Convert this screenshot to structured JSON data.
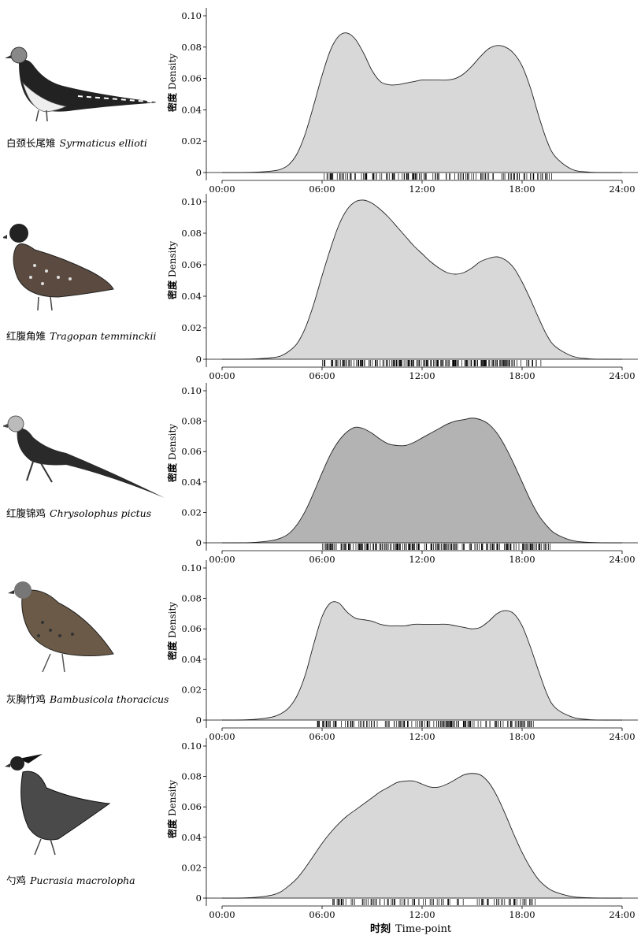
{
  "colors": {
    "fill_light": "#d8d8d8",
    "fill_dark": "#b3b3b3",
    "curve": "#222222",
    "axis": "#000000",
    "rug": "#000000"
  },
  "axis_title_cn": "时刻",
  "axis_title_en": "Time-point",
  "y_label_cn": "密度",
  "y_label_en": "Density",
  "chart_data": [
    {
      "type": "area",
      "species_cn": "白颈长尾雉",
      "species_sci": "Syrmaticus ellioti",
      "fill": "light",
      "xlim": [
        0,
        24
      ],
      "ylim": [
        0,
        0.1
      ],
      "x_ticks": [
        "00:00",
        "06:00",
        "12:00",
        "18:00",
        "24:00"
      ],
      "y_ticks": [
        "0",
        "0.02",
        "0.04",
        "0.06",
        "0.08",
        "0.10"
      ],
      "x": [
        0,
        1,
        2,
        3,
        3.5,
        4,
        4.5,
        5,
        5.5,
        6,
        6.5,
        7,
        7.5,
        8,
        8.5,
        9,
        9.5,
        10,
        10.5,
        11,
        11.5,
        12,
        12.5,
        13,
        13.5,
        14,
        14.5,
        15,
        15.5,
        16,
        16.5,
        17,
        17.5,
        18,
        18.5,
        19,
        19.5,
        20,
        21,
        22,
        23,
        24
      ],
      "density": [
        0,
        0,
        0.0002,
        0.001,
        0.002,
        0.005,
        0.012,
        0.025,
        0.043,
        0.062,
        0.078,
        0.087,
        0.089,
        0.085,
        0.076,
        0.065,
        0.058,
        0.056,
        0.056,
        0.057,
        0.058,
        0.059,
        0.059,
        0.059,
        0.059,
        0.06,
        0.063,
        0.068,
        0.074,
        0.079,
        0.081,
        0.08,
        0.076,
        0.068,
        0.054,
        0.036,
        0.02,
        0.01,
        0.002,
        0.0003,
        0,
        0
      ],
      "rug_range": [
        6.1,
        19.8
      ],
      "rug_count": 150
    },
    {
      "type": "area",
      "species_cn": "红腹角雉",
      "species_sci": "Tragopan temminckii",
      "fill": "light",
      "xlim": [
        0,
        24
      ],
      "ylim": [
        0,
        0.1
      ],
      "x_ticks": [
        "00:00",
        "06:00",
        "12:00",
        "18:00",
        "24:00"
      ],
      "y_ticks": [
        "0",
        "0.02",
        "0.04",
        "0.06",
        "0.08",
        "0.10"
      ],
      "x": [
        0,
        1,
        2,
        3,
        3.5,
        4,
        4.5,
        5,
        5.5,
        6,
        6.5,
        7,
        7.5,
        8,
        8.5,
        9,
        9.5,
        10,
        10.5,
        11,
        11.5,
        12,
        12.5,
        13,
        13.5,
        14,
        14.5,
        15,
        15.5,
        16,
        16.5,
        17,
        17.5,
        18,
        18.5,
        19,
        19.5,
        20,
        21,
        22,
        23,
        24
      ],
      "density": [
        0,
        0,
        0.0002,
        0.001,
        0.002,
        0.005,
        0.01,
        0.02,
        0.035,
        0.053,
        0.07,
        0.085,
        0.095,
        0.1,
        0.101,
        0.099,
        0.095,
        0.09,
        0.084,
        0.078,
        0.072,
        0.067,
        0.062,
        0.058,
        0.055,
        0.054,
        0.055,
        0.058,
        0.062,
        0.064,
        0.065,
        0.063,
        0.058,
        0.049,
        0.038,
        0.026,
        0.015,
        0.008,
        0.002,
        0.0003,
        0,
        0
      ],
      "rug_range": [
        6.0,
        19.3
      ],
      "rug_count": 220
    },
    {
      "type": "area",
      "species_cn": "红腹锦鸡",
      "species_sci": "Chrysolophus pictus",
      "fill": "dark",
      "xlim": [
        0,
        24
      ],
      "ylim": [
        0,
        0.1
      ],
      "x_ticks": [
        "00:00",
        "06:00",
        "12:00",
        "18:00",
        "24:00"
      ],
      "y_ticks": [
        "0",
        "0.02",
        "0.04",
        "0.06",
        "0.08",
        "0.10"
      ],
      "x": [
        0,
        1,
        2,
        3,
        3.5,
        4,
        4.5,
        5,
        5.5,
        6,
        6.5,
        7,
        7.5,
        8,
        8.5,
        9,
        9.5,
        10,
        10.5,
        11,
        11.5,
        12,
        12.5,
        13,
        13.5,
        14,
        14.5,
        15,
        15.5,
        16,
        16.5,
        17,
        17.5,
        18,
        18.5,
        19,
        19.5,
        20,
        21,
        22,
        23,
        24
      ],
      "density": [
        0,
        0,
        0.0003,
        0.0015,
        0.003,
        0.006,
        0.012,
        0.021,
        0.033,
        0.046,
        0.058,
        0.067,
        0.073,
        0.076,
        0.075,
        0.072,
        0.068,
        0.065,
        0.064,
        0.064,
        0.066,
        0.069,
        0.072,
        0.075,
        0.078,
        0.08,
        0.081,
        0.082,
        0.081,
        0.078,
        0.072,
        0.063,
        0.052,
        0.04,
        0.028,
        0.018,
        0.011,
        0.006,
        0.0015,
        0.0003,
        0,
        0
      ],
      "rug_range": [
        6.0,
        19.7
      ],
      "rug_count": 230
    },
    {
      "type": "area",
      "species_cn": "灰胸竹鸡",
      "species_sci": "Bambusicola thoracicus",
      "fill": "light",
      "xlim": [
        0,
        24
      ],
      "ylim": [
        0,
        0.1
      ],
      "x_ticks": [
        "00:00",
        "06:00",
        "12:00",
        "18:00",
        "24:00"
      ],
      "y_ticks": [
        "0",
        "0.02",
        "0.04",
        "0.06",
        "0.08",
        "0.10"
      ],
      "x": [
        0,
        1,
        2,
        3,
        3.5,
        4,
        4.5,
        5,
        5.5,
        6,
        6.5,
        7,
        7.5,
        8,
        8.5,
        9,
        9.5,
        10,
        10.5,
        11,
        11.5,
        12,
        12.5,
        13,
        13.5,
        14,
        14.5,
        15,
        15.5,
        16,
        16.5,
        17,
        17.5,
        18,
        18.5,
        19,
        19.5,
        20,
        21,
        22,
        23,
        24
      ],
      "density": [
        0,
        0,
        0.0005,
        0.002,
        0.004,
        0.008,
        0.016,
        0.03,
        0.05,
        0.068,
        0.077,
        0.077,
        0.071,
        0.067,
        0.066,
        0.065,
        0.063,
        0.062,
        0.062,
        0.062,
        0.063,
        0.063,
        0.063,
        0.063,
        0.063,
        0.062,
        0.061,
        0.06,
        0.061,
        0.065,
        0.07,
        0.072,
        0.07,
        0.062,
        0.048,
        0.032,
        0.017,
        0.008,
        0.002,
        0.0003,
        0,
        0
      ],
      "rug_range": [
        5.7,
        19.0
      ],
      "rug_count": 170
    },
    {
      "type": "area",
      "species_cn": "勺鸡",
      "species_sci": "Pucrasia macrolopha",
      "fill": "light",
      "xlim": [
        0,
        24
      ],
      "ylim": [
        0,
        0.1
      ],
      "x_ticks": [
        "00:00",
        "06:00",
        "12:00",
        "18:00",
        "24:00"
      ],
      "y_ticks": [
        "0",
        "0.02",
        "0.04",
        "0.06",
        "0.08",
        "0.10"
      ],
      "x": [
        0,
        1,
        2,
        3,
        3.5,
        4,
        4.5,
        5,
        5.5,
        6,
        6.5,
        7,
        7.5,
        8,
        8.5,
        9,
        9.5,
        10,
        10.5,
        11,
        11.5,
        12,
        12.5,
        13,
        13.5,
        14,
        14.5,
        15,
        15.5,
        16,
        16.5,
        17,
        17.5,
        18,
        18.5,
        19,
        19.5,
        20,
        21,
        22,
        23,
        24
      ],
      "density": [
        0,
        0,
        0.0005,
        0.002,
        0.004,
        0.008,
        0.013,
        0.02,
        0.028,
        0.036,
        0.043,
        0.049,
        0.054,
        0.058,
        0.062,
        0.066,
        0.07,
        0.073,
        0.076,
        0.077,
        0.077,
        0.075,
        0.073,
        0.073,
        0.075,
        0.078,
        0.081,
        0.082,
        0.081,
        0.076,
        0.067,
        0.055,
        0.042,
        0.03,
        0.02,
        0.012,
        0.007,
        0.004,
        0.001,
        0.0002,
        0,
        0
      ],
      "rug_range": [
        6.5,
        18.8
      ],
      "rug_count": 110
    }
  ]
}
